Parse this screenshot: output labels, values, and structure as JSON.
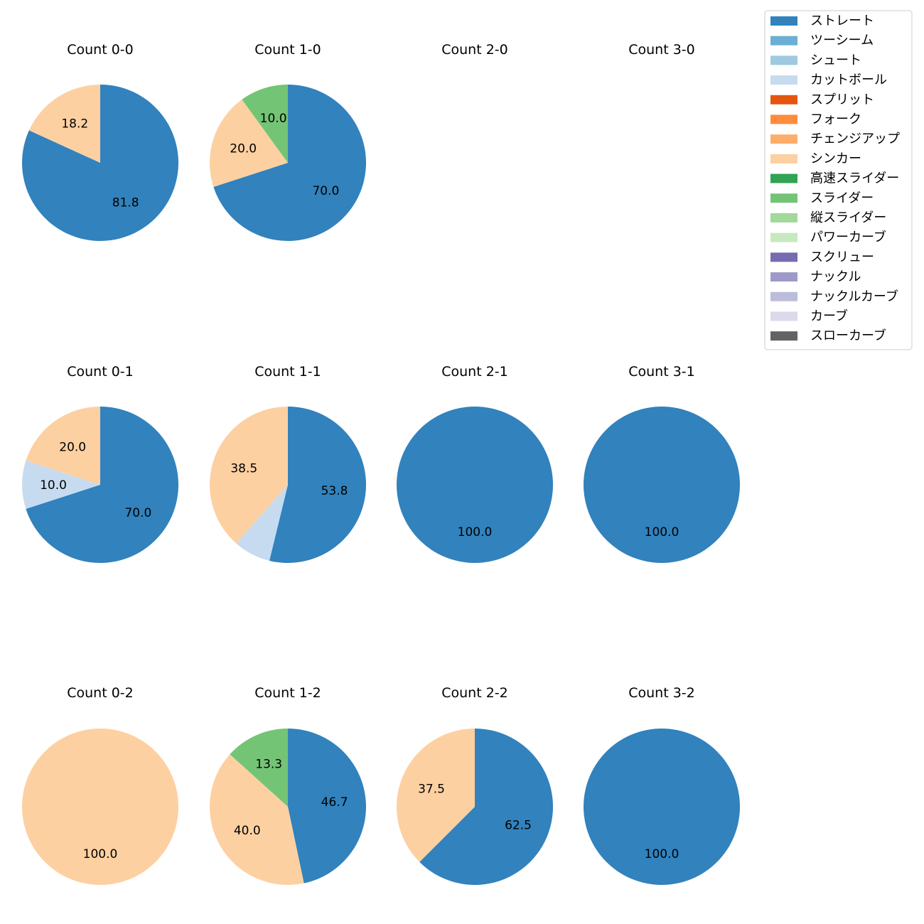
{
  "legend": {
    "entries": [
      {
        "name": "ストレート",
        "color": "#3182bd"
      },
      {
        "name": "ツーシーム",
        "color": "#6baed6"
      },
      {
        "name": "シュート",
        "color": "#9ecae1"
      },
      {
        "name": "カットボール",
        "color": "#c6dbef"
      },
      {
        "name": "スプリット",
        "color": "#e6550d"
      },
      {
        "name": "フォーク",
        "color": "#fd8d3c"
      },
      {
        "name": "チェンジアップ",
        "color": "#fdae6b"
      },
      {
        "name": "シンカー",
        "color": "#fdd0a2"
      },
      {
        "name": "高速スライダー",
        "color": "#31a354"
      },
      {
        "name": "スライダー",
        "color": "#74c476"
      },
      {
        "name": "縦スライダー",
        "color": "#a1d99b"
      },
      {
        "name": "パワーカーブ",
        "color": "#c7e9c0"
      },
      {
        "name": "スクリュー",
        "color": "#756bb1"
      },
      {
        "name": "ナックル",
        "color": "#9e9ac8"
      },
      {
        "name": "ナックルカーブ",
        "color": "#bcbddc"
      },
      {
        "name": "カーブ",
        "color": "#dadaeb"
      },
      {
        "name": "スローカーブ",
        "color": "#636363"
      }
    ]
  },
  "chart_data": [
    {
      "type": "pie",
      "title": "Count 0-0",
      "slices": [
        {
          "label": "ストレート",
          "value": 81.8
        },
        {
          "label": "シンカー",
          "value": 18.2
        }
      ]
    },
    {
      "type": "pie",
      "title": "Count 1-0",
      "slices": [
        {
          "label": "ストレート",
          "value": 70.0
        },
        {
          "label": "シンカー",
          "value": 20.0
        },
        {
          "label": "スライダー",
          "value": 10.0
        }
      ]
    },
    {
      "type": "pie",
      "title": "Count 2-0",
      "slices": []
    },
    {
      "type": "pie",
      "title": "Count 3-0",
      "slices": []
    },
    {
      "type": "pie",
      "title": "Count 0-1",
      "slices": [
        {
          "label": "ストレート",
          "value": 70.0
        },
        {
          "label": "カットボール",
          "value": 10.0
        },
        {
          "label": "シンカー",
          "value": 20.0
        }
      ]
    },
    {
      "type": "pie",
      "title": "Count 1-1",
      "slices": [
        {
          "label": "ストレート",
          "value": 53.8
        },
        {
          "label": "カットボール",
          "value": 7.7,
          "hidden_label": true
        },
        {
          "label": "シンカー",
          "value": 38.5
        }
      ]
    },
    {
      "type": "pie",
      "title": "Count 2-1",
      "slices": [
        {
          "label": "ストレート",
          "value": 100.0
        }
      ]
    },
    {
      "type": "pie",
      "title": "Count 3-1",
      "slices": [
        {
          "label": "ストレート",
          "value": 100.0
        }
      ]
    },
    {
      "type": "pie",
      "title": "Count 0-2",
      "slices": [
        {
          "label": "シンカー",
          "value": 100.0
        }
      ]
    },
    {
      "type": "pie",
      "title": "Count 1-2",
      "slices": [
        {
          "label": "ストレート",
          "value": 46.7
        },
        {
          "label": "シンカー",
          "value": 40.0
        },
        {
          "label": "スライダー",
          "value": 13.3
        }
      ]
    },
    {
      "type": "pie",
      "title": "Count 2-2",
      "slices": [
        {
          "label": "ストレート",
          "value": 62.5
        },
        {
          "label": "シンカー",
          "value": 37.5
        }
      ]
    },
    {
      "type": "pie",
      "title": "Count 3-2",
      "slices": [
        {
          "label": "ストレート",
          "value": 100.0
        }
      ]
    }
  ]
}
